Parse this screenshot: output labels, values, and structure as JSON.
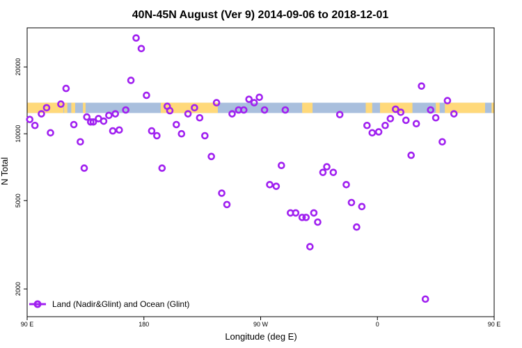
{
  "chart_data": {
    "type": "scatter",
    "title": "40N-45N August (Ver 9)   2014-09-06 to 2018-12-01",
    "xlabel": "Longitude (deg E)",
    "ylabel": "N Total",
    "xlim": [
      90,
      450
    ],
    "ylim": [
      1500,
      30000
    ],
    "y_scale": "log",
    "x_ticks": [
      {
        "value": 90,
        "label": "90 E"
      },
      {
        "value": 180,
        "label": "180"
      },
      {
        "value": 270,
        "label": "90 W"
      },
      {
        "value": 360,
        "label": "0"
      },
      {
        "value": 450,
        "label": "90 E"
      }
    ],
    "y_ticks": [
      {
        "value": 2000,
        "label": "2000"
      },
      {
        "value": 5000,
        "label": "5000"
      },
      {
        "value": 10000,
        "label": "10000"
      },
      {
        "value": 20000,
        "label": "20000"
      }
    ],
    "grid": false,
    "legend": {
      "position": "bottom-left",
      "entries": [
        "Land (Nadir&Glint) and Ocean (Glint)"
      ]
    },
    "surface_strip": {
      "y_range": [
        12400,
        13800
      ],
      "land_color": "#FFD97A",
      "ocean_color": "#A9BFDD",
      "land_segments": [
        [
          90,
          118
        ],
        [
          118.5,
          121
        ],
        [
          124,
          127
        ],
        [
          133,
          135
        ],
        [
          193,
          208
        ],
        [
          208,
          237
        ],
        [
          302,
          310
        ],
        [
          351,
          356
        ],
        [
          362,
          387
        ],
        [
          405,
          408
        ],
        [
          412,
          443
        ],
        [
          448,
          450
        ]
      ]
    },
    "series": [
      {
        "name": "Land (Nadir&Glint) and Ocean (Glint)",
        "color": "#A020F0",
        "x": [
          92,
          96,
          101,
          105,
          108,
          116,
          120,
          126,
          131,
          134,
          136,
          139,
          141,
          145,
          149,
          153,
          156,
          158,
          161,
          166,
          170,
          174,
          178,
          182,
          186,
          190,
          194,
          198,
          200,
          205,
          209,
          214,
          219,
          223,
          227,
          232,
          236,
          240,
          244,
          248,
          253,
          257,
          261,
          265,
          269,
          273,
          277,
          282,
          286,
          289,
          293,
          297,
          302,
          305,
          308,
          311,
          314,
          318,
          321,
          326,
          331,
          336,
          340,
          344,
          348,
          352,
          356,
          361,
          366,
          370,
          374,
          378,
          382,
          386,
          390,
          394,
          397,
          401,
          405,
          410,
          414,
          419
        ],
        "y": [
          11600,
          10900,
          12300,
          13100,
          10100,
          13600,
          16000,
          11000,
          9200,
          7000,
          11900,
          11300,
          11300,
          11700,
          11400,
          12100,
          10300,
          12300,
          10400,
          12800,
          17400,
          27000,
          24200,
          14900,
          10300,
          9800,
          7000,
          13300,
          12700,
          11000,
          10000,
          12300,
          13100,
          11800,
          9800,
          7900,
          13800,
          5400,
          4800,
          12300,
          12800,
          12800,
          14300,
          13800,
          14600,
          12800,
          5900,
          5800,
          7200,
          12800,
          4400,
          4400,
          4200,
          4200,
          3100,
          4400,
          4000,
          6700,
          7100,
          6700,
          12200,
          5900,
          4900,
          3800,
          4700,
          10900,
          10100,
          10200,
          10900,
          11700,
          12900,
          12500,
          11500,
          8000,
          11100,
          16400,
          1800,
          12800,
          11800,
          9200,
          14100,
          12300
        ]
      }
    ]
  }
}
